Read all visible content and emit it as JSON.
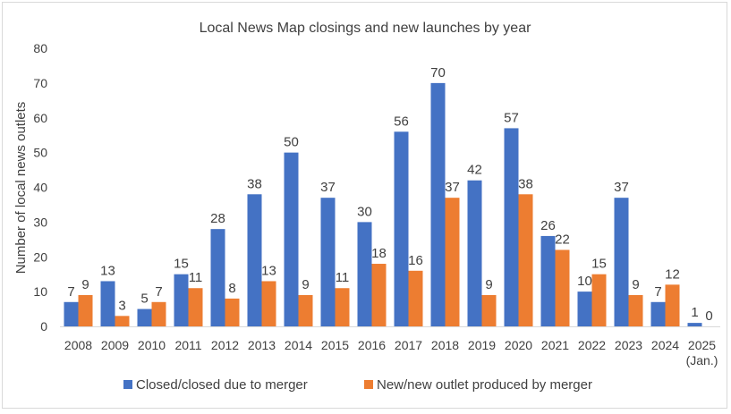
{
  "chart_data": {
    "type": "bar",
    "title": "Local News Map closings and new launches by year",
    "xlabel": "",
    "ylabel": "Number of local news outlets",
    "ylim": [
      0,
      80
    ],
    "yticks": [
      0,
      10,
      20,
      30,
      40,
      50,
      60,
      70,
      80
    ],
    "grid": false,
    "legend_position": "bottom",
    "categories": [
      "2008",
      "2009",
      "2010",
      "2011",
      "2012",
      "2013",
      "2014",
      "2015",
      "2016",
      "2017",
      "2018",
      "2019",
      "2020",
      "2021",
      "2022",
      "2023",
      "2024",
      "2025\n(Jan.)"
    ],
    "series": [
      {
        "name": "Closed/closed due to merger",
        "color": "#4472c4",
        "values": [
          7,
          13,
          5,
          15,
          28,
          38,
          50,
          37,
          30,
          56,
          70,
          42,
          57,
          26,
          10,
          37,
          7,
          1
        ]
      },
      {
        "name": "New/new outlet produced by merger",
        "color": "#ed7d31",
        "values": [
          9,
          3,
          7,
          11,
          8,
          13,
          9,
          11,
          18,
          16,
          37,
          9,
          38,
          22,
          15,
          9,
          12,
          0
        ]
      }
    ]
  },
  "colors": {
    "axis": "#d9d9d9",
    "text": "#404040",
    "frame": "#d9d9d9"
  }
}
